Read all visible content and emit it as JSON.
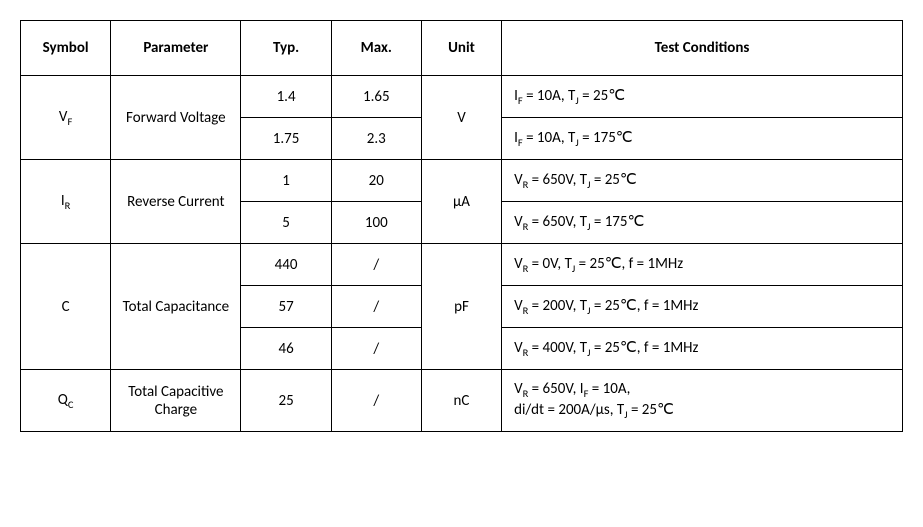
{
  "headers": {
    "symbol": "Symbol",
    "parameter": "Parameter",
    "typ": "Typ.",
    "max": "Max.",
    "unit": "Unit",
    "test": "Test Conditions"
  },
  "rows": {
    "vf": {
      "symbol_html": "V<sub>F</sub>",
      "parameter": "Forward Voltage",
      "unit": "V",
      "sub": [
        {
          "typ": "1.4",
          "max": "1.65",
          "test_html": "I<sub>F</sub> = 10A, T<sub>J</sub> = 25℃"
        },
        {
          "typ": "1.75",
          "max": "2.3",
          "test_html": "I<sub>F</sub> = 10A, T<sub>J</sub> = 175℃"
        }
      ]
    },
    "ir": {
      "symbol_html": "I<sub>R</sub>",
      "parameter": "Reverse Current",
      "unit": "µA",
      "sub": [
        {
          "typ": "1",
          "max": "20",
          "test_html": "V<sub>R</sub> = 650V, T<sub>J</sub> = 25℃"
        },
        {
          "typ": "5",
          "max": "100",
          "test_html": "V<sub>R</sub> = 650V, T<sub>J</sub> = 175℃"
        }
      ]
    },
    "c": {
      "symbol_html": "C",
      "parameter": "Total Capacitance",
      "unit": "pF",
      "sub": [
        {
          "typ": "440",
          "max": "/",
          "test_html": "V<sub>R</sub> = 0V, T<sub>J</sub> = 25℃, f = 1MHz"
        },
        {
          "typ": "57",
          "max": "/",
          "test_html": "V<sub>R</sub> = 200V, T<sub>J</sub> = 25℃, f = 1MHz"
        },
        {
          "typ": "46",
          "max": "/",
          "test_html": "V<sub>R</sub> = 400V, T<sub>J</sub> = 25℃, f = 1MHz"
        }
      ]
    },
    "qc": {
      "symbol_html": "Q<sub>C</sub>",
      "parameter": "Total Capacitive Charge",
      "unit": "nC",
      "sub": [
        {
          "typ": "25",
          "max": "/",
          "test_html": "V<sub>R</sub> = 650V, I<sub>F</sub> = 10A,<br>di/dt = 200A/µs, T<sub>J</sub> = 25℃"
        }
      ]
    }
  }
}
